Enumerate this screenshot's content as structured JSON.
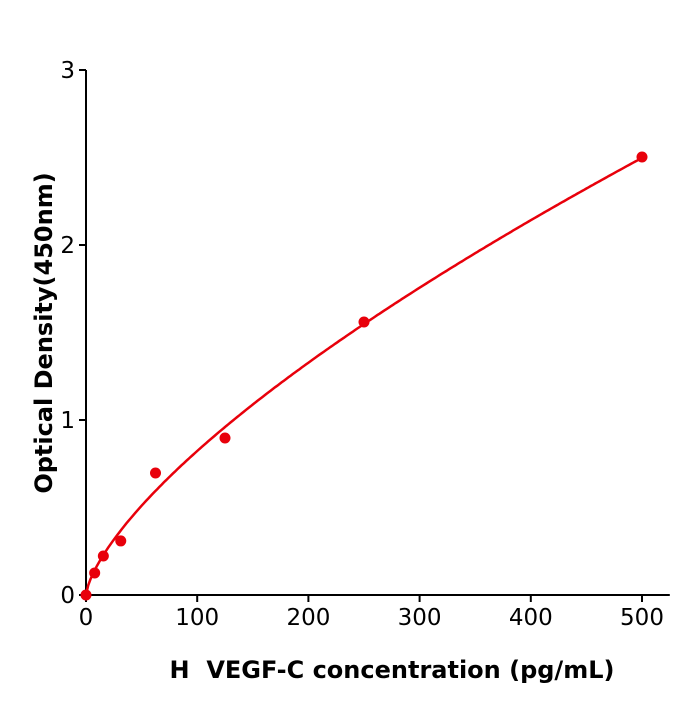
{
  "chart_data": {
    "type": "scatter",
    "title": "",
    "xlabel": "H  VEGF-C concentration (pg/mL)",
    "ylabel": "Optical Density(450nm)",
    "xlim": [
      0,
      525
    ],
    "ylim": [
      0,
      3
    ],
    "xticks": [
      0,
      100,
      200,
      300,
      400,
      500
    ],
    "yticks": [
      0,
      1,
      2,
      3
    ],
    "grid": false,
    "color": "#e8000b",
    "points": [
      {
        "x": 0,
        "y": 0
      },
      {
        "x": 7.8,
        "y": 0.126
      },
      {
        "x": 15.6,
        "y": 0.223
      },
      {
        "x": 31.25,
        "y": 0.309
      },
      {
        "x": 62.5,
        "y": 0.697
      },
      {
        "x": 125,
        "y": 0.897
      },
      {
        "x": 250,
        "y": 1.56
      },
      {
        "x": 500,
        "y": 2.503
      }
    ],
    "fit_curve": true
  }
}
